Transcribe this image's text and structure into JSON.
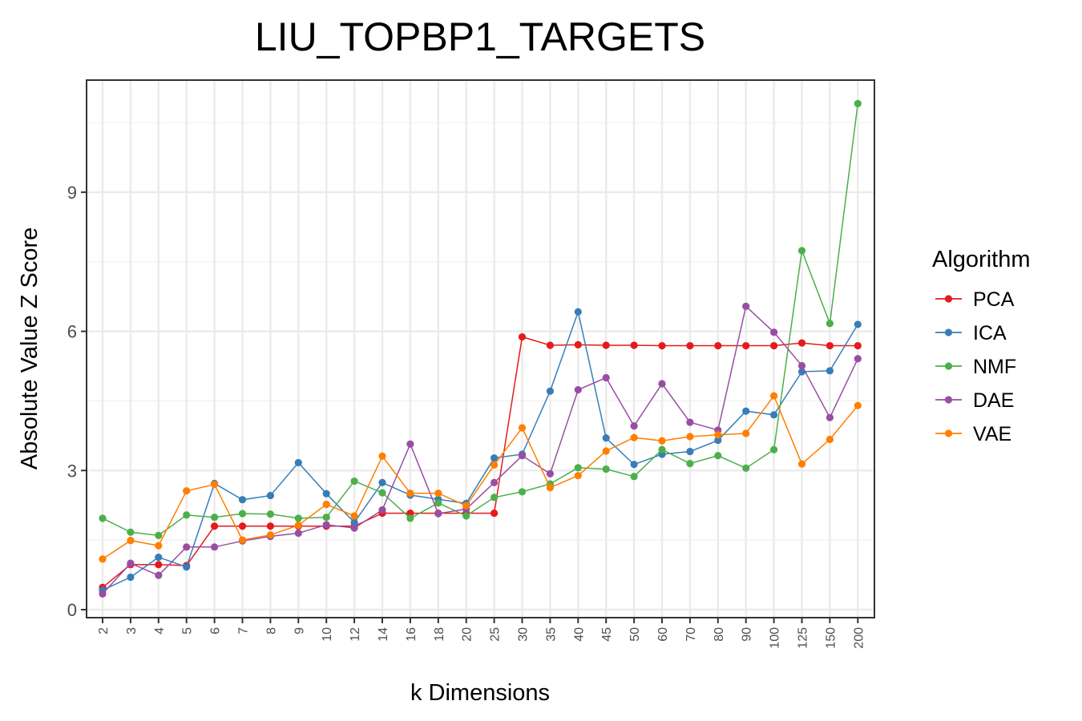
{
  "chart_data": {
    "type": "line",
    "title": "LIU_TOPBP1_TARGETS",
    "xlabel": "k Dimensions",
    "ylabel": "Absolute Value Z Score",
    "categories": [
      "2",
      "3",
      "4",
      "5",
      "6",
      "7",
      "8",
      "9",
      "10",
      "12",
      "14",
      "16",
      "18",
      "20",
      "25",
      "30",
      "35",
      "40",
      "45",
      "50",
      "60",
      "70",
      "80",
      "90",
      "100",
      "125",
      "150",
      "200"
    ],
    "ylim": [
      0,
      11
    ],
    "yticks": [
      "0",
      "3",
      "6",
      "9"
    ],
    "grid": true,
    "legend_title": "Algorithm",
    "legend_position": "right",
    "series": [
      {
        "name": "PCA",
        "color": "#E41A1C",
        "values": [
          0.48,
          0.97,
          0.97,
          0.95,
          1.8,
          1.8,
          1.8,
          1.8,
          1.8,
          1.8,
          2.08,
          2.08,
          2.08,
          2.08,
          2.08,
          5.88,
          5.7,
          5.71,
          5.7,
          5.7,
          5.69,
          5.69,
          5.69,
          5.69,
          5.69,
          5.75,
          5.69,
          5.69
        ]
      },
      {
        "name": "ICA",
        "color": "#377EB8",
        "values": [
          0.42,
          0.7,
          1.13,
          0.92,
          2.72,
          2.37,
          2.46,
          3.17,
          2.5,
          1.88,
          2.74,
          2.47,
          2.38,
          2.29,
          3.27,
          3.35,
          4.71,
          6.42,
          3.7,
          3.13,
          3.35,
          3.41,
          3.65,
          4.28,
          4.2,
          5.13,
          5.15,
          6.15
        ]
      },
      {
        "name": "NMF",
        "color": "#4DAF4A",
        "values": [
          1.97,
          1.67,
          1.6,
          2.04,
          1.99,
          2.07,
          2.06,
          1.97,
          1.99,
          2.77,
          2.52,
          1.97,
          2.3,
          2.02,
          2.42,
          2.54,
          2.71,
          3.06,
          3.03,
          2.87,
          3.45,
          3.15,
          3.32,
          3.05,
          3.45,
          7.74,
          6.17,
          10.91
        ]
      },
      {
        "name": "DAE",
        "color": "#984EA3",
        "values": [
          0.34,
          1.0,
          0.74,
          1.35,
          1.35,
          1.48,
          1.58,
          1.65,
          1.83,
          1.76,
          2.15,
          3.57,
          2.07,
          2.17,
          2.74,
          3.32,
          2.93,
          4.74,
          5.0,
          3.96,
          4.87,
          4.04,
          3.87,
          6.54,
          5.98,
          5.26,
          4.14,
          5.41
        ]
      },
      {
        "name": "VAE",
        "color": "#FF7F00",
        "values": [
          1.09,
          1.49,
          1.38,
          2.56,
          2.7,
          1.5,
          1.61,
          1.82,
          2.27,
          2.02,
          3.31,
          2.51,
          2.51,
          2.24,
          3.12,
          3.92,
          2.63,
          2.89,
          3.42,
          3.71,
          3.64,
          3.73,
          3.77,
          3.8,
          4.61,
          3.14,
          3.67,
          4.4
        ]
      }
    ]
  }
}
